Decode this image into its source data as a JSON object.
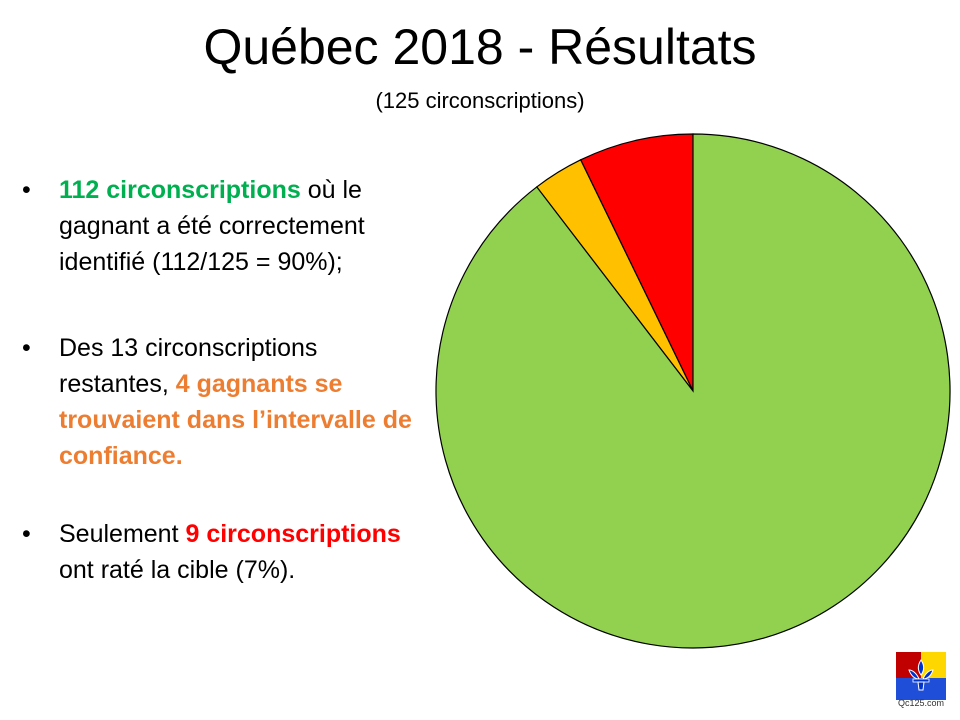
{
  "title": "Québec 2018 - Résultats",
  "subtitle": "(125 circonscriptions)",
  "bullets": [
    {
      "marker": "•",
      "part1": "112 circonscriptions",
      "part2": " où le gagnant a été correctement identifié (112/125 = 90%);"
    },
    {
      "marker": "•",
      "part1": "Des 13 circonscriptions restantes, ",
      "part2": "4 gagnants se trouvaient dans l’intervalle de confiance."
    },
    {
      "marker": "•",
      "part1": "Seulement ",
      "part2": "9 circonscriptions",
      "part3": " ont raté la cible (7%)."
    }
  ],
  "chart_data": {
    "type": "pie",
    "start_angle_deg": 0,
    "direction": "counterclockwise",
    "slices": [
      {
        "value": 9,
        "color": "#ff0000"
      },
      {
        "value": 4,
        "color": "#ffc000"
      },
      {
        "value": 112,
        "color": "#92d050"
      }
    ],
    "stroke": "#000000"
  },
  "logo": {
    "text": "Qc125.com",
    "colors": [
      "#c00000",
      "#ffd700",
      "#1f4fd8",
      "#0033cc"
    ]
  }
}
